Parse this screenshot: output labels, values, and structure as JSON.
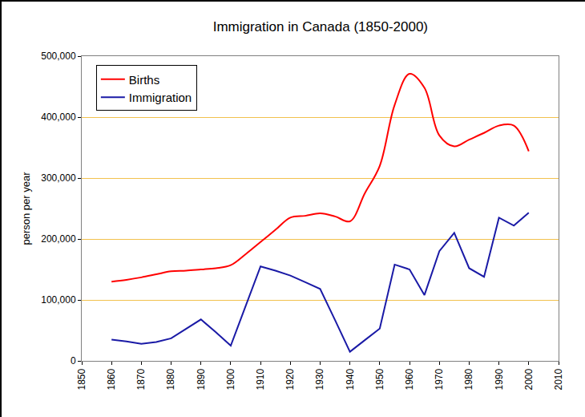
{
  "chart_data": {
    "type": "line",
    "title": "Immigration in Canada (1850-2000)",
    "y_label": "person per year",
    "x": [
      1860,
      1865,
      1870,
      1875,
      1880,
      1885,
      1890,
      1895,
      1900,
      1905,
      1910,
      1915,
      1920,
      1925,
      1930,
      1935,
      1940,
      1945,
      1950,
      1955,
      1960,
      1965,
      1970,
      1975,
      1980,
      1985,
      1990,
      1995,
      2000
    ],
    "series": [
      {
        "name": "Births",
        "color": "#ff0000",
        "line_style": "smooth",
        "values": [
          130000,
          133000,
          137000,
          142000,
          147000,
          148000,
          150000,
          152000,
          157000,
          175000,
          195000,
          215000,
          235000,
          238000,
          242000,
          237000,
          229000,
          275000,
          320000,
          420000,
          471000,
          448000,
          370000,
          352000,
          363000,
          374000,
          386000,
          386000,
          344000
        ]
      },
      {
        "name": "Immigration",
        "color": "#1a1aa6",
        "line_style": "solid",
        "values": [
          35000,
          32000,
          28000,
          31000,
          37000,
          53000,
          68000,
          47000,
          25000,
          90000,
          155000,
          148000,
          140000,
          129000,
          118000,
          67000,
          15000,
          34000,
          53000,
          158000,
          150000,
          108000,
          180000,
          210000,
          152000,
          138000,
          235000,
          222000,
          243000
        ]
      }
    ],
    "xlim": [
      1850,
      2010
    ],
    "xticks": [
      1850,
      1860,
      1870,
      1880,
      1890,
      1900,
      1910,
      1920,
      1930,
      1940,
      1950,
      1960,
      1970,
      1980,
      1990,
      2000,
      2010
    ],
    "ylim": [
      0,
      500000
    ],
    "yticks": [
      0,
      {
        "value": 100000,
        "label": "100,000"
      },
      {
        "value": 200000,
        "label": "200,000"
      },
      {
        "value": 300000,
        "label": "300,000"
      },
      {
        "value": 400000,
        "label": "400,000"
      },
      {
        "value": 500000,
        "label": "500,000"
      }
    ],
    "grid": true,
    "legend": "upper left"
  }
}
